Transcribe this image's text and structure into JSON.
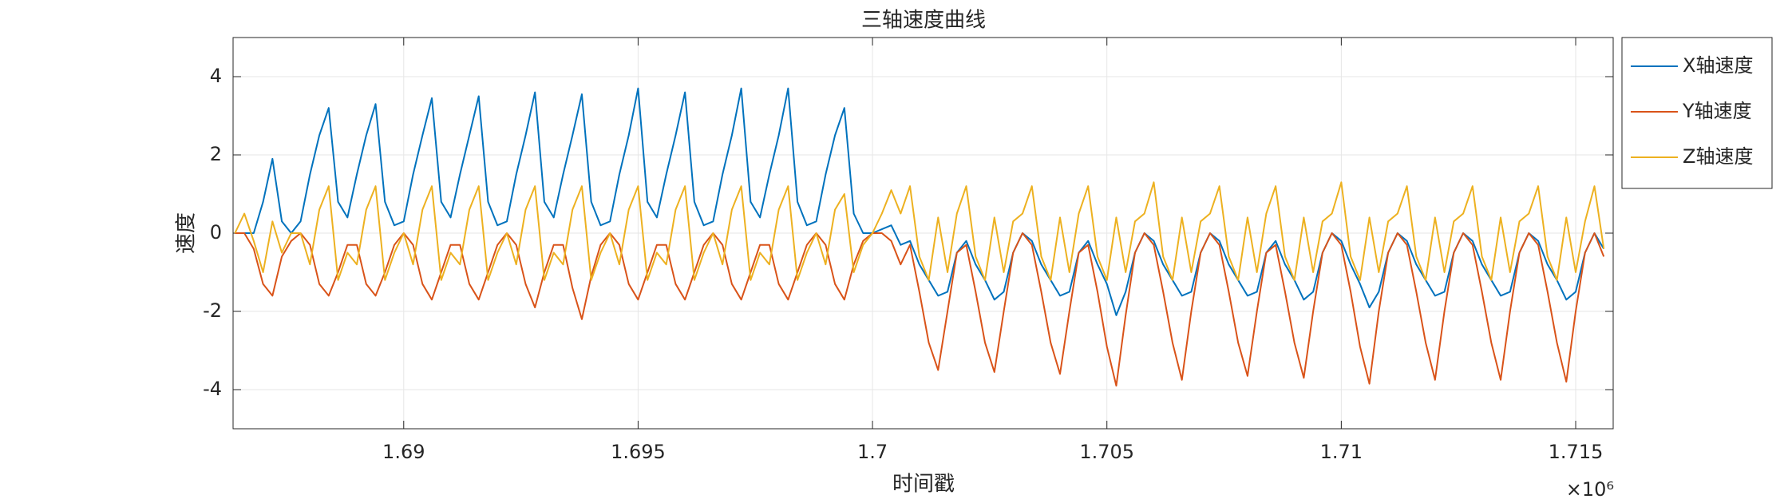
{
  "chart_data": {
    "type": "line",
    "title": "三轴速度曲线",
    "xlabel": "时间戳",
    "ylabel": "速度",
    "x_exponent_label": "×10⁶",
    "x": [
      1686400,
      1686600,
      1686800,
      1687000,
      1687200,
      1687400,
      1687600,
      1687800,
      1688000,
      1688200,
      1688400,
      1688600,
      1688800,
      1689000,
      1689200,
      1689400,
      1689600,
      1689800,
      1690000,
      1690200,
      1690400,
      1690600,
      1690800,
      1691000,
      1691200,
      1691400,
      1691600,
      1691800,
      1692000,
      1692200,
      1692400,
      1692600,
      1692800,
      1693000,
      1693200,
      1693400,
      1693600,
      1693800,
      1694000,
      1694200,
      1694400,
      1694600,
      1694800,
      1695000,
      1695200,
      1695400,
      1695600,
      1695800,
      1696000,
      1696200,
      1696400,
      1696600,
      1696800,
      1697000,
      1697200,
      1697400,
      1697600,
      1697800,
      1698000,
      1698200,
      1698400,
      1698600,
      1698800,
      1699000,
      1699200,
      1699400,
      1699600,
      1699800,
      1700000,
      1700200,
      1700400,
      1700600,
      1700800,
      1701000,
      1701200,
      1701400,
      1701600,
      1701800,
      1702000,
      1702200,
      1702400,
      1702600,
      1702800,
      1703000,
      1703200,
      1703400,
      1703600,
      1703800,
      1704000,
      1704200,
      1704400,
      1704600,
      1704800,
      1705000,
      1705200,
      1705400,
      1705600,
      1705800,
      1706000,
      1706200,
      1706400,
      1706600,
      1706800,
      1707000,
      1707200,
      1707400,
      1707600,
      1707800,
      1708000,
      1708200,
      1708400,
      1708600,
      1708800,
      1709000,
      1709200,
      1709400,
      1709600,
      1709800,
      1710000,
      1710200,
      1710400,
      1710600,
      1710800,
      1711000,
      1711200,
      1711400,
      1711600,
      1711800,
      1712000,
      1712200,
      1712400,
      1712600,
      1712800,
      1713000,
      1713200,
      1713400,
      1713600,
      1713800,
      1714000,
      1714200,
      1714400,
      1714600,
      1714800,
      1715000,
      1715200,
      1715400,
      1715600
    ],
    "series": [
      {
        "name": "X轴速度",
        "color": "#0072BD",
        "values": [
          0,
          0,
          0,
          0.8,
          1.9,
          0.3,
          0,
          0.3,
          1.5,
          2.5,
          3.2,
          0.8,
          0.4,
          1.5,
          2.5,
          3.3,
          0.8,
          0.2,
          0.3,
          1.5,
          2.5,
          3.45,
          0.8,
          0.4,
          1.5,
          2.5,
          3.5,
          0.8,
          0.2,
          0.3,
          1.5,
          2.5,
          3.6,
          0.8,
          0.4,
          1.5,
          2.5,
          3.55,
          0.8,
          0.2,
          0.3,
          1.5,
          2.5,
          3.7,
          0.8,
          0.4,
          1.5,
          2.5,
          3.6,
          0.8,
          0.2,
          0.3,
          1.5,
          2.5,
          3.7,
          0.8,
          0.4,
          1.5,
          2.5,
          3.7,
          0.8,
          0.2,
          0.3,
          1.5,
          2.5,
          3.2,
          0.5,
          0,
          0,
          0.1,
          0.2,
          -0.3,
          -0.2,
          -0.8,
          -1.2,
          -1.6,
          -1.5,
          -0.5,
          -0.2,
          -0.8,
          -1.2,
          -1.7,
          -1.5,
          -0.5,
          0,
          -0.2,
          -0.8,
          -1.2,
          -1.6,
          -1.5,
          -0.5,
          -0.2,
          -0.8,
          -1.3,
          -2.1,
          -1.5,
          -0.5,
          0,
          -0.2,
          -0.8,
          -1.2,
          -1.6,
          -1.5,
          -0.5,
          0,
          -0.2,
          -0.8,
          -1.2,
          -1.6,
          -1.5,
          -0.5,
          -0.2,
          -0.8,
          -1.2,
          -1.7,
          -1.5,
          -0.5,
          0,
          -0.2,
          -0.8,
          -1.3,
          -1.9,
          -1.5,
          -0.5,
          0,
          -0.2,
          -0.8,
          -1.2,
          -1.6,
          -1.5,
          -0.5,
          0,
          -0.2,
          -0.8,
          -1.2,
          -1.6,
          -1.5,
          -0.5,
          0,
          -0.2,
          -0.8,
          -1.2,
          -1.7,
          -1.5,
          -0.5,
          0,
          -0.4
        ]
      },
      {
        "name": "Y轴速度",
        "color": "#D95319",
        "values": [
          0,
          0,
          -0.4,
          -1.3,
          -1.6,
          -0.6,
          -0.2,
          0,
          -0.3,
          -1.3,
          -1.6,
          -1.0,
          -0.3,
          -0.3,
          -1.3,
          -1.6,
          -1.0,
          -0.3,
          0,
          -0.3,
          -1.3,
          -1.7,
          -1.0,
          -0.3,
          -0.3,
          -1.3,
          -1.7,
          -1.0,
          -0.3,
          0,
          -0.3,
          -1.3,
          -1.9,
          -1.0,
          -0.3,
          -0.3,
          -1.4,
          -2.2,
          -1.1,
          -0.3,
          0,
          -0.3,
          -1.3,
          -1.7,
          -1.0,
          -0.3,
          -0.3,
          -1.3,
          -1.7,
          -1.0,
          -0.3,
          0,
          -0.3,
          -1.3,
          -1.7,
          -1.0,
          -0.3,
          -0.3,
          -1.3,
          -1.7,
          -1.0,
          -0.3,
          0,
          -0.3,
          -1.3,
          -1.7,
          -0.8,
          -0.2,
          0,
          0,
          -0.2,
          -0.8,
          -0.3,
          -1.5,
          -2.8,
          -3.5,
          -2.0,
          -0.5,
          -0.3,
          -1.5,
          -2.8,
          -3.55,
          -2.0,
          -0.5,
          0,
          -0.3,
          -1.5,
          -2.8,
          -3.6,
          -2.0,
          -0.5,
          -0.3,
          -1.5,
          -2.9,
          -3.9,
          -2.1,
          -0.5,
          0,
          -0.3,
          -1.5,
          -2.8,
          -3.75,
          -2.0,
          -0.5,
          0,
          -0.3,
          -1.5,
          -2.8,
          -3.65,
          -2.0,
          -0.5,
          -0.3,
          -1.5,
          -2.8,
          -3.7,
          -2.0,
          -0.5,
          0,
          -0.3,
          -1.5,
          -2.9,
          -3.85,
          -2.0,
          -0.5,
          0,
          -0.3,
          -1.5,
          -2.8,
          -3.75,
          -2.0,
          -0.5,
          0,
          -0.3,
          -1.5,
          -2.8,
          -3.75,
          -2.0,
          -0.5,
          0,
          -0.3,
          -1.5,
          -2.8,
          -3.8,
          -2.0,
          -0.5,
          0,
          -0.6
        ]
      },
      {
        "name": "Z轴速度",
        "color": "#EDB120",
        "values": [
          0,
          0.5,
          -0.2,
          -1.0,
          0.3,
          -0.5,
          0,
          0,
          -0.8,
          0.6,
          1.2,
          -1.2,
          -0.5,
          -0.8,
          0.6,
          1.2,
          -1.2,
          -0.5,
          0,
          -0.8,
          0.6,
          1.2,
          -1.2,
          -0.5,
          -0.8,
          0.6,
          1.2,
          -1.2,
          -0.5,
          0,
          -0.8,
          0.6,
          1.2,
          -1.2,
          -0.5,
          -0.8,
          0.6,
          1.2,
          -1.2,
          -0.5,
          0,
          -0.8,
          0.6,
          1.2,
          -1.2,
          -0.5,
          -0.8,
          0.6,
          1.2,
          -1.2,
          -0.5,
          0,
          -0.8,
          0.6,
          1.2,
          -1.2,
          -0.5,
          -0.8,
          0.6,
          1.2,
          -1.2,
          -0.5,
          0,
          -0.8,
          0.6,
          1.0,
          -1.0,
          -0.3,
          0,
          0.5,
          1.1,
          0.5,
          1.2,
          -0.6,
          -1.2,
          0.4,
          -1.0,
          0.5,
          1.2,
          -0.6,
          -1.2,
          0.4,
          -1.0,
          0.3,
          0.5,
          1.2,
          -0.6,
          -1.2,
          0.4,
          -1.0,
          0.5,
          1.2,
          -0.6,
          -1.2,
          0.4,
          -1.0,
          0.3,
          0.5,
          1.3,
          -0.6,
          -1.2,
          0.4,
          -1.0,
          0.3,
          0.5,
          1.2,
          -0.6,
          -1.2,
          0.4,
          -1.0,
          0.5,
          1.2,
          -0.6,
          -1.2,
          0.4,
          -1.0,
          0.3,
          0.5,
          1.3,
          -0.6,
          -1.2,
          0.4,
          -1.0,
          0.3,
          0.5,
          1.2,
          -0.6,
          -1.2,
          0.4,
          -1.0,
          0.3,
          0.5,
          1.2,
          -0.6,
          -1.2,
          0.4,
          -1.0,
          0.3,
          0.5,
          1.2,
          -0.6,
          -1.2,
          0.4,
          -1.0,
          0.3,
          1.2,
          -0.4
        ]
      }
    ],
    "xlim": [
      1686360,
      1715800
    ],
    "ylim": [
      -5,
      5
    ],
    "xticks": [
      {
        "value": 1690000,
        "label": "1.69"
      },
      {
        "value": 1695000,
        "label": "1.695"
      },
      {
        "value": 1700000,
        "label": "1.7"
      },
      {
        "value": 1705000,
        "label": "1.705"
      },
      {
        "value": 1710000,
        "label": "1.71"
      },
      {
        "value": 1715000,
        "label": "1.715"
      }
    ],
    "yticks": [
      -4,
      -2,
      0,
      2,
      4
    ],
    "grid": true,
    "legend": "northeastoutside"
  }
}
